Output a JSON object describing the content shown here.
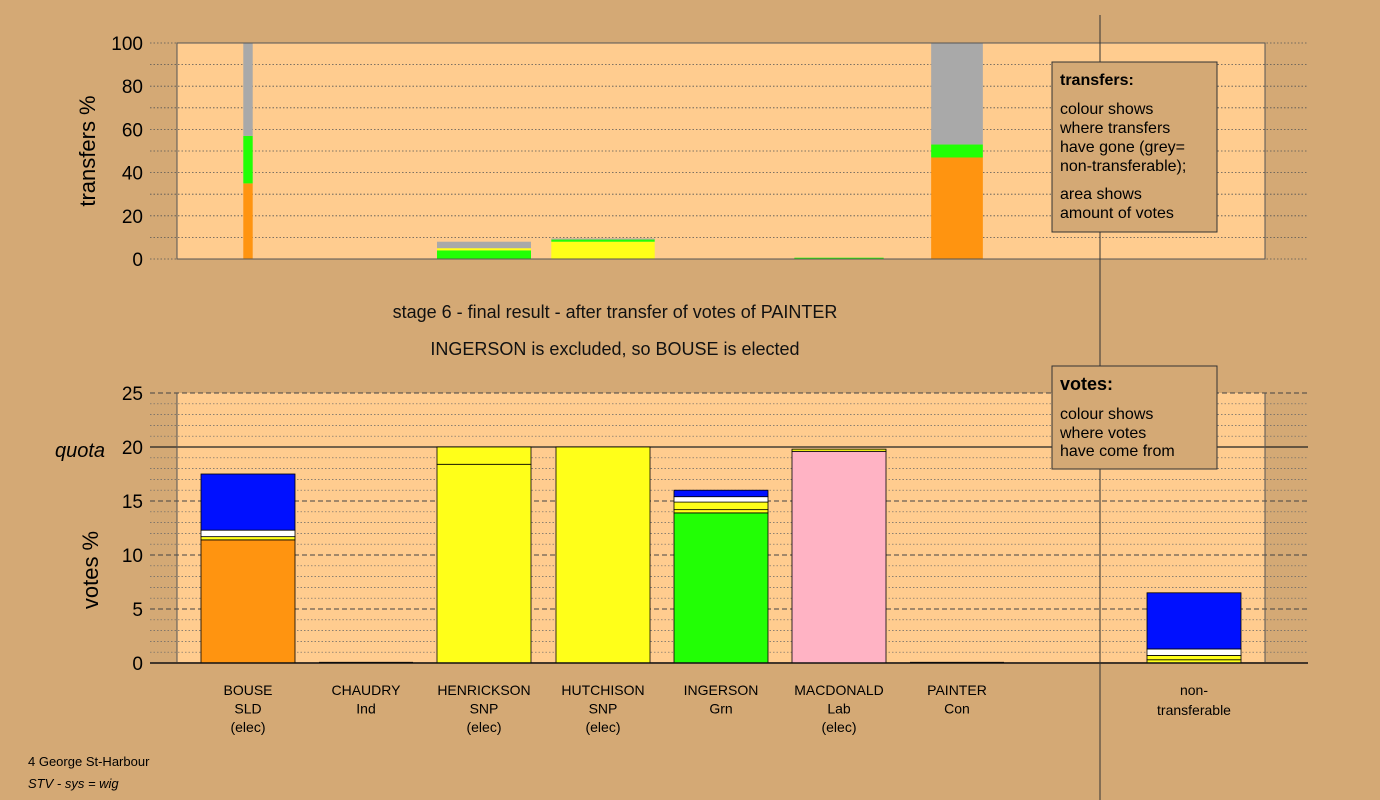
{
  "colors": {
    "background": "#d4a975",
    "plot_bg": "#ffcc8f",
    "SLD": "#ff9410",
    "Grn": "#22ff05",
    "SNP": "#ffff19",
    "Lab": "#ffb3c4",
    "Con": "#0010ff",
    "nontransferable": "#a9a9a9",
    "white": "#ffffff"
  },
  "top_chart": {
    "ylabel": "transfers %",
    "yticks": [
      "0",
      "20",
      "40",
      "60",
      "80",
      "100"
    ]
  },
  "legend_transfers": {
    "title": "transfers:",
    "lines": [
      "colour shows",
      "where transfers",
      "have gone (grey=",
      "non-transferable);"
    ],
    "lines2": [
      "area shows",
      "amount of votes"
    ]
  },
  "stage_title": "stage 6 - final result - after transfer of votes of PAINTER",
  "stage_subtitle": "INGERSON is excluded, so BOUSE is elected",
  "bottom_chart": {
    "ylabel": "votes %",
    "quota_label": "quota",
    "yticks": [
      "0",
      "5",
      "10",
      "15",
      "20",
      "25"
    ]
  },
  "legend_votes": {
    "title": "votes:",
    "lines": [
      "colour shows",
      "where votes",
      "have come from"
    ]
  },
  "candidates": [
    {
      "name": "BOUSE",
      "party": "SLD",
      "status": "(elec)"
    },
    {
      "name": "CHAUDRY",
      "party": "Ind",
      "status": ""
    },
    {
      "name": "HENRICKSON",
      "party": "SNP",
      "status": "(elec)"
    },
    {
      "name": "HUTCHISON",
      "party": "SNP",
      "status": "(elec)"
    },
    {
      "name": "INGERSON",
      "party": "Grn",
      "status": ""
    },
    {
      "name": "MACDONALD",
      "party": "Lab",
      "status": "(elec)"
    },
    {
      "name": "PAINTER",
      "party": "Con",
      "status": ""
    }
  ],
  "nontransferable_label": [
    "non-",
    "transferable"
  ],
  "footer": {
    "line1": "4 George St-Harbour",
    "line2": "STV - sys = wig"
  },
  "chart_data": [
    {
      "type": "bar",
      "ylabel": "transfers %",
      "ylim": [
        0,
        100
      ],
      "categories": [
        "BOUSE",
        "CHAUDRY",
        "HENRICKSON",
        "HUTCHISON",
        "INGERSON",
        "MACDONALD",
        "PAINTER"
      ],
      "bars": [
        {
          "category": "BOUSE",
          "segments": [
            {
              "color": "SLD",
              "value": 35
            },
            {
              "color": "Grn",
              "value": 22
            },
            {
              "color": "nontransferable",
              "value": 43
            }
          ],
          "share": 0.02
        },
        {
          "category": "HENRICKSON",
          "segments": [
            {
              "color": "Grn",
              "value": 4
            },
            {
              "color": "SNP",
              "value": 1
            },
            {
              "color": "nontransferable",
              "value": 3
            }
          ],
          "share": 0.2
        },
        {
          "category": "HUTCHISON",
          "segments": [
            {
              "color": "SNP",
              "value": 8
            },
            {
              "color": "Grn",
              "value": 1
            },
            {
              "color": "nontransferable",
              "value": 0.5
            }
          ],
          "share": 0.22
        },
        {
          "category": "MACDONALD",
          "segments": [
            {
              "color": "Grn",
              "value": 0.6
            }
          ],
          "share": 0.19
        },
        {
          "category": "PAINTER",
          "segments": [
            {
              "color": "SLD",
              "value": 47
            },
            {
              "color": "Grn",
              "value": 6
            },
            {
              "color": "nontransferable",
              "value": 47
            }
          ],
          "share": 0.11
        }
      ]
    },
    {
      "type": "bar",
      "ylabel": "votes %",
      "ylim": [
        0,
        25
      ],
      "quota": 20,
      "categories": [
        "BOUSE",
        "CHAUDRY",
        "HENRICKSON",
        "HUTCHISON",
        "INGERSON",
        "MACDONALD",
        "PAINTER",
        "non-transferable"
      ],
      "stacks": [
        [
          {
            "color": "SLD",
            "value": 11.4
          },
          {
            "color": "SNP",
            "value": 0.3
          },
          {
            "color": "white",
            "value": 0.6
          },
          {
            "color": "Con",
            "value": 5.2
          }
        ],
        [],
        [
          {
            "color": "SNP",
            "value": 18.4
          },
          {
            "color": "SNP",
            "value": 1.6
          }
        ],
        [
          {
            "color": "SNP",
            "value": 20.0
          }
        ],
        [
          {
            "color": "Grn",
            "value": 13.9
          },
          {
            "color": "SNP",
            "value": 0.3
          },
          {
            "color": "SNP",
            "value": 0.7
          },
          {
            "color": "white",
            "value": 0.5
          },
          {
            "color": "Con",
            "value": 0.6
          }
        ],
        [
          {
            "color": "Lab",
            "value": 19.6
          },
          {
            "color": "SNP",
            "value": 0.2
          }
        ],
        [],
        [
          {
            "color": "SNP",
            "value": 0.3
          },
          {
            "color": "SNP",
            "value": 0.4
          },
          {
            "color": "white",
            "value": 0.6
          },
          {
            "color": "Con",
            "value": 5.2
          }
        ]
      ]
    }
  ]
}
